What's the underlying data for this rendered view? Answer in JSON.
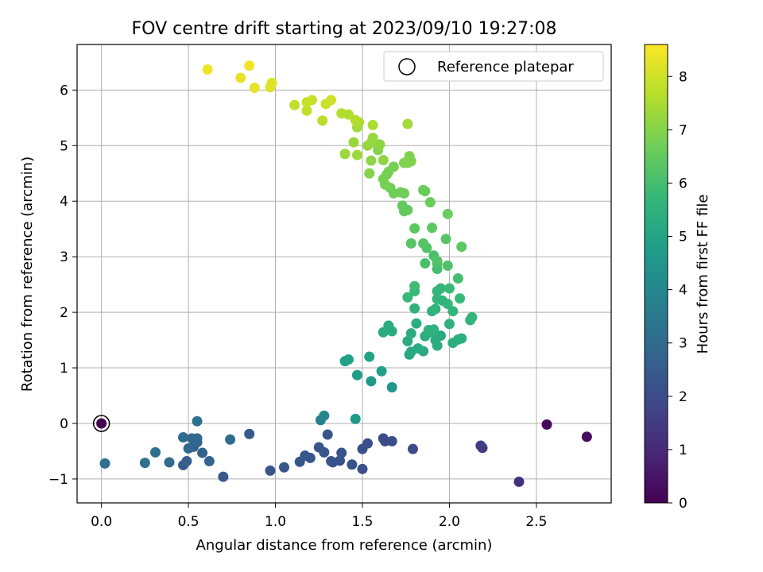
{
  "chart_data": {
    "type": "scatter",
    "title": "FOV centre drift starting at 2023/09/10 19:27:08",
    "xlabel": "Angular distance from reference (arcmin)",
    "ylabel": "Rotation from reference (arcmin)",
    "xlim": [
      -0.14,
      2.93
    ],
    "ylim": [
      -1.43,
      6.82
    ],
    "xticks": [
      0.0,
      0.5,
      1.0,
      1.5,
      2.0,
      2.5
    ],
    "xtick_labels": [
      "0.0",
      "0.5",
      "1.0",
      "1.5",
      "2.0",
      "2.5"
    ],
    "yticks": [
      -1,
      0,
      1,
      2,
      3,
      4,
      5,
      6
    ],
    "ytick_labels": [
      "−1",
      "0",
      "1",
      "2",
      "3",
      "4",
      "5",
      "6"
    ],
    "grid": true,
    "legend": {
      "position": "upper right",
      "entries": [
        "Reference platepar"
      ]
    },
    "colorbar": {
      "label": "Hours from first FF file",
      "range": [
        0,
        8.6
      ],
      "ticks": [
        0,
        1,
        2,
        3,
        4,
        5,
        6,
        7,
        8
      ],
      "tick_labels": [
        "0",
        "1",
        "2",
        "3",
        "4",
        "5",
        "6",
        "7",
        "8"
      ],
      "colormap": "viridis"
    },
    "reference_point": {
      "x": 0.0,
      "y": 0.0
    },
    "points": [
      [
        0.0,
        0.0,
        0.0
      ],
      [
        2.56,
        -0.02,
        0.2
      ],
      [
        2.79,
        -0.24,
        0.3
      ],
      [
        2.4,
        -1.05,
        1.2
      ],
      [
        2.18,
        -0.4,
        1.5
      ],
      [
        2.19,
        -0.44,
        1.6
      ],
      [
        1.79,
        -0.46,
        2.0
      ],
      [
        1.67,
        -0.32,
        2.0
      ],
      [
        1.62,
        -0.27,
        2.0
      ],
      [
        1.63,
        -0.32,
        2.0
      ],
      [
        1.53,
        -0.36,
        2.1
      ],
      [
        1.5,
        -0.46,
        2.1
      ],
      [
        1.5,
        -0.82,
        2.1
      ],
      [
        1.44,
        -0.74,
        2.2
      ],
      [
        1.38,
        -0.53,
        2.2
      ],
      [
        1.37,
        -0.67,
        2.2
      ],
      [
        1.33,
        -0.7,
        2.2
      ],
      [
        1.32,
        -0.68,
        2.2
      ],
      [
        1.3,
        -0.2,
        2.3
      ],
      [
        1.28,
        -0.52,
        2.3
      ],
      [
        1.25,
        -0.43,
        2.3
      ],
      [
        1.2,
        -0.62,
        2.3
      ],
      [
        1.17,
        -0.58,
        2.3
      ],
      [
        1.14,
        -0.69,
        2.3
      ],
      [
        1.05,
        -0.79,
        2.3
      ],
      [
        0.97,
        -0.85,
        2.3
      ],
      [
        0.85,
        -0.19,
        2.4
      ],
      [
        0.7,
        -0.96,
        2.4
      ],
      [
        0.47,
        -0.75,
        2.5
      ],
      [
        0.49,
        -0.68,
        2.6
      ],
      [
        0.58,
        -0.53,
        2.7
      ],
      [
        0.53,
        -0.42,
        2.7
      ],
      [
        0.55,
        -0.34,
        2.8
      ],
      [
        0.62,
        -0.68,
        2.8
      ],
      [
        0.5,
        -0.45,
        2.9
      ],
      [
        0.55,
        -0.27,
        2.9
      ],
      [
        0.52,
        -0.27,
        2.9
      ],
      [
        0.47,
        -0.25,
        3.0
      ],
      [
        0.74,
        -0.29,
        3.0
      ],
      [
        0.39,
        -0.7,
        3.0
      ],
      [
        0.31,
        -0.52,
        3.1
      ],
      [
        0.25,
        -0.71,
        3.2
      ],
      [
        0.02,
        -0.72,
        3.2
      ],
      [
        0.55,
        0.04,
        3.3
      ],
      [
        1.26,
        0.06,
        3.8
      ],
      [
        1.28,
        0.14,
        4.0
      ],
      [
        1.46,
        0.08,
        4.6
      ],
      [
        1.67,
        0.65,
        4.5
      ],
      [
        1.55,
        0.76,
        4.6
      ],
      [
        1.47,
        0.87,
        4.7
      ],
      [
        1.61,
        0.94,
        4.9
      ],
      [
        1.4,
        1.12,
        4.9
      ],
      [
        1.42,
        1.15,
        4.9
      ],
      [
        1.54,
        1.2,
        5.0
      ],
      [
        1.77,
        1.24,
        5.0
      ],
      [
        1.78,
        1.29,
        5.2
      ],
      [
        1.85,
        1.3,
        5.2
      ],
      [
        1.82,
        1.35,
        5.3
      ],
      [
        1.93,
        1.4,
        5.3
      ],
      [
        1.92,
        1.5,
        5.3
      ],
      [
        1.95,
        1.58,
        5.3
      ],
      [
        2.02,
        1.45,
        5.4
      ],
      [
        2.07,
        1.53,
        5.4
      ],
      [
        2.05,
        1.51,
        5.4
      ],
      [
        1.86,
        1.57,
        5.4
      ],
      [
        1.9,
        1.64,
        5.4
      ],
      [
        1.76,
        1.48,
        5.3
      ],
      [
        1.78,
        1.62,
        5.3
      ],
      [
        1.65,
        1.76,
        5.3
      ],
      [
        1.67,
        1.66,
        5.3
      ],
      [
        1.62,
        1.64,
        5.3
      ],
      [
        1.81,
        1.8,
        5.4
      ],
      [
        1.88,
        1.68,
        5.5
      ],
      [
        1.91,
        1.69,
        5.5
      ],
      [
        2.0,
        1.79,
        5.5
      ],
      [
        2.12,
        1.86,
        5.5
      ],
      [
        2.13,
        1.91,
        5.6
      ],
      [
        1.8,
        2.07,
        5.5
      ],
      [
        1.9,
        2.02,
        5.5
      ],
      [
        1.92,
        2.06,
        5.6
      ],
      [
        2.02,
        2.02,
        5.6
      ],
      [
        1.99,
        2.15,
        5.7
      ],
      [
        1.96,
        2.21,
        5.6
      ],
      [
        1.93,
        2.24,
        5.6
      ],
      [
        1.93,
        2.38,
        5.7
      ],
      [
        1.95,
        2.43,
        5.7
      ],
      [
        2.0,
        2.43,
        5.8
      ],
      [
        2.06,
        2.25,
        5.8
      ],
      [
        1.76,
        2.27,
        5.8
      ],
      [
        1.8,
        2.38,
        5.8
      ],
      [
        1.8,
        2.47,
        5.9
      ],
      [
        2.05,
        2.61,
        6.0
      ],
      [
        1.93,
        2.78,
        6.0
      ],
      [
        1.93,
        2.88,
        6.1
      ],
      [
        1.86,
        2.88,
        6.1
      ],
      [
        1.91,
        3.02,
        6.1
      ],
      [
        1.99,
        2.84,
        6.2
      ],
      [
        1.93,
        2.92,
        6.2
      ],
      [
        1.87,
        3.16,
        6.2
      ],
      [
        1.85,
        3.24,
        6.3
      ],
      [
        1.78,
        3.24,
        6.3
      ],
      [
        1.98,
        3.32,
        6.3
      ],
      [
        2.07,
        3.18,
        6.4
      ],
      [
        1.8,
        3.51,
        6.4
      ],
      [
        1.9,
        3.52,
        6.4
      ],
      [
        1.74,
        3.82,
        6.5
      ],
      [
        1.76,
        3.84,
        6.5
      ],
      [
        1.73,
        3.92,
        6.5
      ],
      [
        1.99,
        3.77,
        6.6
      ],
      [
        1.89,
        3.98,
        6.6
      ],
      [
        1.85,
        4.2,
        6.6
      ],
      [
        1.86,
        4.18,
        6.6
      ],
      [
        1.74,
        4.14,
        6.7
      ],
      [
        1.72,
        4.16,
        6.7
      ],
      [
        1.68,
        4.14,
        6.7
      ],
      [
        1.66,
        4.24,
        6.7
      ],
      [
        1.63,
        4.3,
        6.8
      ],
      [
        1.62,
        4.4,
        6.8
      ],
      [
        1.64,
        4.48,
        6.8
      ],
      [
        1.65,
        4.53,
        6.8
      ],
      [
        1.68,
        4.62,
        6.8
      ],
      [
        1.74,
        4.69,
        6.9
      ],
      [
        1.76,
        4.69,
        6.9
      ],
      [
        1.78,
        4.72,
        6.9
      ],
      [
        1.77,
        4.81,
        6.9
      ],
      [
        1.54,
        4.5,
        7.0
      ],
      [
        1.59,
        4.92,
        7.0
      ],
      [
        1.6,
        5.02,
        7.1
      ],
      [
        1.62,
        4.74,
        7.1
      ],
      [
        1.55,
        4.73,
        7.1
      ],
      [
        1.53,
        5.0,
        7.2
      ],
      [
        1.55,
        5.05,
        7.2
      ],
      [
        1.56,
        5.14,
        7.2
      ],
      [
        1.47,
        4.83,
        7.3
      ],
      [
        1.4,
        4.85,
        7.3
      ],
      [
        1.45,
        5.06,
        7.3
      ],
      [
        1.47,
        5.33,
        7.4
      ],
      [
        1.76,
        5.39,
        7.4
      ],
      [
        1.56,
        5.37,
        7.5
      ],
      [
        1.48,
        5.42,
        7.5
      ],
      [
        1.46,
        5.46,
        7.6
      ],
      [
        1.42,
        5.56,
        7.6
      ],
      [
        1.38,
        5.58,
        7.6
      ],
      [
        1.27,
        5.45,
        7.7
      ],
      [
        1.18,
        5.63,
        7.8
      ],
      [
        1.11,
        5.73,
        7.8
      ],
      [
        1.18,
        5.78,
        7.9
      ],
      [
        1.21,
        5.82,
        7.9
      ],
      [
        1.29,
        5.75,
        7.9
      ],
      [
        1.32,
        5.82,
        8.0
      ],
      [
        0.97,
        6.05,
        8.2
      ],
      [
        0.98,
        6.13,
        8.2
      ],
      [
        0.88,
        6.04,
        8.3
      ],
      [
        0.8,
        6.22,
        8.3
      ],
      [
        0.85,
        6.44,
        8.4
      ],
      [
        0.61,
        6.37,
        8.4
      ]
    ]
  }
}
